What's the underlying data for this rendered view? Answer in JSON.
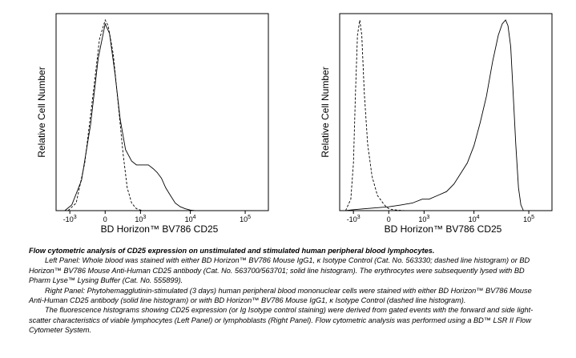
{
  "chart_data": [
    {
      "type": "line",
      "panel": "left",
      "xlabel": "BD Horizon™ BV786 CD25",
      "ylabel": "Relative Cell Number",
      "x_scale": "biexponential",
      "x_ticks": [
        {
          "value": -1000,
          "base": "-10",
          "exp": "3"
        },
        {
          "value": 0,
          "base": "0",
          "exp": ""
        },
        {
          "value": 1000,
          "base": "10",
          "exp": "3"
        },
        {
          "value": 10000,
          "base": "10",
          "exp": "4"
        },
        {
          "value": 100000,
          "base": "10",
          "exp": "5"
        }
      ],
      "xlim": [
        -2000,
        262144
      ],
      "ylim": [
        0,
        100
      ],
      "series": [
        {
          "style": "solid",
          "x": [
            -1300,
            -900,
            -500,
            -250,
            -100,
            0,
            60,
            150,
            260,
            400,
            600,
            800,
            1100,
            1500,
            1900,
            2300,
            2800,
            3400,
            4200,
            5200,
            6500,
            8000,
            10000,
            12000
          ],
          "y": [
            0,
            3,
            16,
            45,
            80,
            98,
            93,
            72,
            48,
            32,
            26,
            24,
            24,
            24,
            22,
            20,
            17,
            12,
            8,
            4,
            2,
            1,
            0.3,
            0
          ]
        },
        {
          "style": "dashed",
          "x": [
            -1100,
            -700,
            -400,
            -200,
            -80,
            0,
            40,
            120,
            220,
            330,
            450,
            600,
            800,
            1100
          ],
          "y": [
            0,
            4,
            25,
            60,
            90,
            100,
            97,
            82,
            55,
            30,
            12,
            4,
            1,
            0
          ]
        }
      ]
    },
    {
      "type": "line",
      "panel": "right",
      "xlabel": "BD Horizon™ BV786 CD25",
      "ylabel": "Relative Cell Number",
      "x_scale": "biexponential",
      "x_ticks": [
        {
          "value": -1000,
          "base": "-10",
          "exp": "3"
        },
        {
          "value": 0,
          "base": "0",
          "exp": ""
        },
        {
          "value": 1000,
          "base": "10",
          "exp": "3"
        },
        {
          "value": 10000,
          "base": "10",
          "exp": "4"
        },
        {
          "value": 100000,
          "base": "10",
          "exp": "5"
        }
      ],
      "xlim": [
        -2000,
        262144
      ],
      "ylim": [
        0,
        100
      ],
      "series": [
        {
          "style": "dashed",
          "x": [
            -1500,
            -1150,
            -1000,
            -900,
            -800,
            -700,
            -620,
            -530,
            -420,
            -300,
            -180,
            -60,
            0,
            60,
            160,
            300
          ],
          "y": [
            0,
            6,
            25,
            60,
            92,
            100,
            92,
            62,
            35,
            18,
            8,
            3,
            1,
            0.5,
            0.2,
            0
          ]
        },
        {
          "style": "solid",
          "x": [
            -1500,
            -1000,
            -500,
            0,
            200,
            500,
            900,
            1300,
            2000,
            3000,
            4200,
            5500,
            7500,
            10000,
            13000,
            17000,
            22000,
            28000,
            33000,
            38000,
            42000,
            47000,
            52000,
            58000,
            65000,
            72000,
            80000
          ],
          "y": [
            0,
            0.5,
            1,
            2,
            3,
            4,
            6,
            6,
            8,
            10,
            14,
            19,
            25,
            34,
            46,
            60,
            78,
            92,
            98,
            100,
            97,
            86,
            62,
            35,
            12,
            3,
            0
          ]
        }
      ]
    }
  ],
  "caption": {
    "title": "Flow cytometric analysis of CD25 expression on unstimulated and stimulated human peripheral blood lymphocytes.",
    "left_panel": "Left Panel: Whole blood was stained with either BD Horizon™ BV786 Mouse IgG1, κ Isotype Control (Cat. No. 563330; dashed line histogram) or BD Horizon™ BV786 Mouse Anti-Human CD25 antibody (Cat. No. 563700/563701; solid line histogram). The erythrocytes were subsequently lysed with BD Pharm Lyse™ Lysing Buffer (Cat. No. 555899).",
    "right_panel": "Right Panel: Phytohemagglutinin-stimulated (3 days) human peripheral blood mononuclear cells were stained with either BD Horizon™ BV786 Mouse Anti-Human CD25 antibody (solid line histogram) or with BD Horizon™ BV786 Mouse IgG1, κ Isotype Control (dashed line histogram).",
    "gating": "The fluorescence histograms showing CD25 expression (or Ig Isotype control staining) were derived from gated events with the forward and side light-scatter characteristics of viable lymphocytes (Left Panel) or lymphoblasts (Right Panel). Flow cytometric analysis was performed using a BD™ LSR II Flow Cytometer System."
  }
}
